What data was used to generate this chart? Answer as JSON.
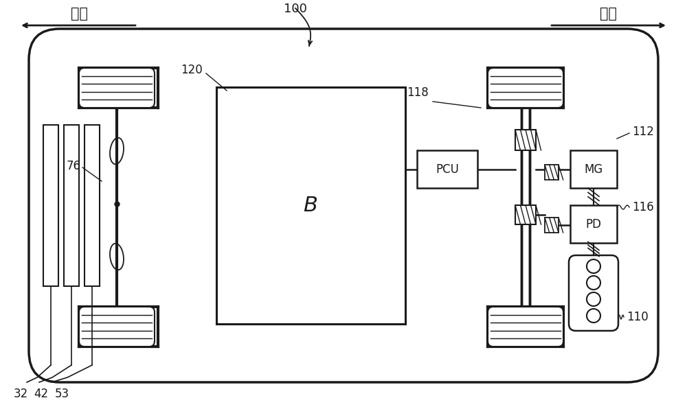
{
  "bg_color": "#ffffff",
  "line_color": "#1a1a1a",
  "fig_width": 10.0,
  "fig_height": 6.12,
  "label_front": "前方",
  "label_rear": "后方",
  "ref_100": "100",
  "ref_76": "76",
  "ref_120": "120",
  "ref_B": "B",
  "ref_118": "118",
  "ref_PCU": "PCU",
  "ref_MG": "MG",
  "ref_PD": "PD",
  "ref_116": "116",
  "ref_112": "112",
  "ref_110": "110",
  "ref_32": "32",
  "ref_42": "42",
  "ref_53": "53"
}
